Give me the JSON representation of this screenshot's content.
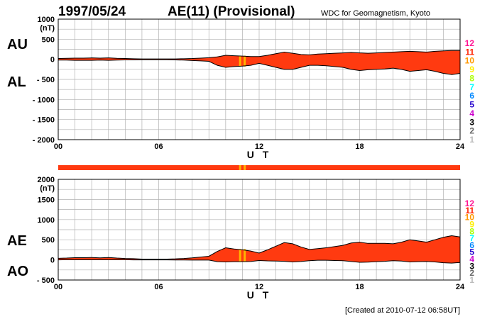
{
  "header": {
    "date": "1997/05/24",
    "index_title": "AE(11) (Provisional)",
    "source": "WDC for Geomagnetism, Kyoto"
  },
  "footer": {
    "created": "[Created at 2010-07-12 06:58UT]"
  },
  "colors": {
    "fill": "#ff3a10",
    "border": "#000000",
    "grid": "#b0b0b0",
    "highlight": "#ffb300"
  },
  "levels": [
    {
      "label": "12",
      "color": "#ff1493"
    },
    {
      "label": "11",
      "color": "#ff2200"
    },
    {
      "label": "10",
      "color": "#ff9900"
    },
    {
      "label": "9",
      "color": "#ffee00"
    },
    {
      "label": "8",
      "color": "#aaff00"
    },
    {
      "label": "7",
      "color": "#00ffff"
    },
    {
      "label": "6",
      "color": "#0088ff"
    },
    {
      "label": "5",
      "color": "#2200cc"
    },
    {
      "label": "4",
      "color": "#cc00cc"
    },
    {
      "label": "3",
      "color": "#000000"
    },
    {
      "label": "2",
      "color": "#666666"
    },
    {
      "label": "1",
      "color": "#bbbbbb"
    }
  ],
  "chart_data": [
    {
      "type": "area",
      "title": "",
      "upper_label": "AU",
      "lower_label": "AL",
      "unit": "(nT)",
      "xlabel": "U T",
      "ylabel": "",
      "xlim": [
        0,
        24
      ],
      "ylim": [
        -2000,
        1000
      ],
      "x_ticks": [
        "00",
        "06",
        "12",
        "18",
        "24"
      ],
      "y_ticks": [
        "1000",
        "500",
        "0",
        "- 500",
        "- 1000",
        "- 1500",
        "- 2000"
      ],
      "y_tick_values": [
        1000,
        500,
        0,
        -500,
        -1000,
        -1500,
        -2000
      ],
      "grid": true,
      "x": [
        0,
        0.5,
        1,
        1.5,
        2,
        2.5,
        3,
        3.5,
        4,
        4.5,
        5,
        5.5,
        6,
        6.5,
        7,
        7.5,
        8,
        8.5,
        9,
        9.5,
        10,
        10.5,
        11,
        11.5,
        12,
        12.5,
        13,
        13.5,
        14,
        14.5,
        15,
        15.5,
        16,
        16.5,
        17,
        17.5,
        18,
        18.5,
        19,
        19.5,
        20,
        20.5,
        21,
        21.5,
        22,
        22.5,
        23,
        23.5,
        24
      ],
      "series": [
        {
          "name": "AU",
          "values": [
            20,
            25,
            30,
            30,
            35,
            30,
            35,
            25,
            20,
            15,
            10,
            10,
            10,
            10,
            10,
            15,
            20,
            30,
            40,
            60,
            100,
            90,
            80,
            70,
            70,
            100,
            140,
            180,
            150,
            120,
            110,
            130,
            140,
            150,
            160,
            170,
            160,
            150,
            160,
            170,
            180,
            190,
            200,
            190,
            180,
            200,
            210,
            220,
            220
          ]
        },
        {
          "name": "AL",
          "values": [
            -20,
            -20,
            -25,
            -25,
            -25,
            -20,
            -25,
            -20,
            -15,
            -15,
            -10,
            -10,
            -10,
            -10,
            -15,
            -20,
            -30,
            -40,
            -50,
            -150,
            -200,
            -180,
            -170,
            -150,
            -100,
            -150,
            -200,
            -250,
            -250,
            -200,
            -150,
            -150,
            -160,
            -180,
            -200,
            -250,
            -280,
            -260,
            -250,
            -240,
            -220,
            -250,
            -300,
            -280,
            -260,
            -300,
            -350,
            -380,
            -350
          ]
        }
      ],
      "highlight_intervals": [
        [
          10.8,
          11.2
        ]
      ]
    },
    {
      "type": "area",
      "title": "",
      "upper_label": "AE",
      "lower_label": "AO",
      "unit": "(nT)",
      "xlabel": "U T",
      "ylabel": "",
      "xlim": [
        0,
        24
      ],
      "ylim": [
        -500,
        2000
      ],
      "x_ticks": [
        "00",
        "06",
        "12",
        "18",
        "24"
      ],
      "y_ticks": [
        "2000",
        "1500",
        "1000",
        "500",
        "0",
        "- 500"
      ],
      "y_tick_values": [
        2000,
        1500,
        1000,
        500,
        0,
        -500
      ],
      "grid": true,
      "x": [
        0,
        0.5,
        1,
        1.5,
        2,
        2.5,
        3,
        3.5,
        4,
        4.5,
        5,
        5.5,
        6,
        6.5,
        7,
        7.5,
        8,
        8.5,
        9,
        9.5,
        10,
        10.5,
        11,
        11.5,
        12,
        12.5,
        13,
        13.5,
        14,
        14.5,
        15,
        15.5,
        16,
        16.5,
        17,
        17.5,
        18,
        18.5,
        19,
        19.5,
        20,
        20.5,
        21,
        21.5,
        22,
        22.5,
        23,
        23.5,
        24
      ],
      "series": [
        {
          "name": "AE",
          "values": [
            40,
            45,
            55,
            55,
            60,
            50,
            60,
            45,
            35,
            30,
            20,
            20,
            20,
            20,
            25,
            35,
            50,
            70,
            90,
            210,
            300,
            270,
            250,
            220,
            170,
            250,
            340,
            430,
            400,
            320,
            260,
            280,
            300,
            330,
            360,
            420,
            440,
            410,
            410,
            410,
            400,
            440,
            500,
            470,
            440,
            500,
            560,
            600,
            570
          ]
        },
        {
          "name": "AO",
          "values": [
            0,
            3,
            3,
            3,
            5,
            5,
            5,
            3,
            3,
            0,
            0,
            0,
            0,
            0,
            -3,
            -3,
            -5,
            -5,
            -5,
            -45,
            -50,
            -45,
            -45,
            -40,
            -15,
            -25,
            -30,
            -35,
            -50,
            -40,
            -20,
            -10,
            -10,
            -15,
            -20,
            -40,
            -60,
            -55,
            -45,
            -35,
            -20,
            -30,
            -50,
            -45,
            -40,
            -50,
            -70,
            -80,
            -65
          ]
        }
      ],
      "highlight_intervals": [
        [
          10.8,
          11.2
        ]
      ]
    }
  ]
}
